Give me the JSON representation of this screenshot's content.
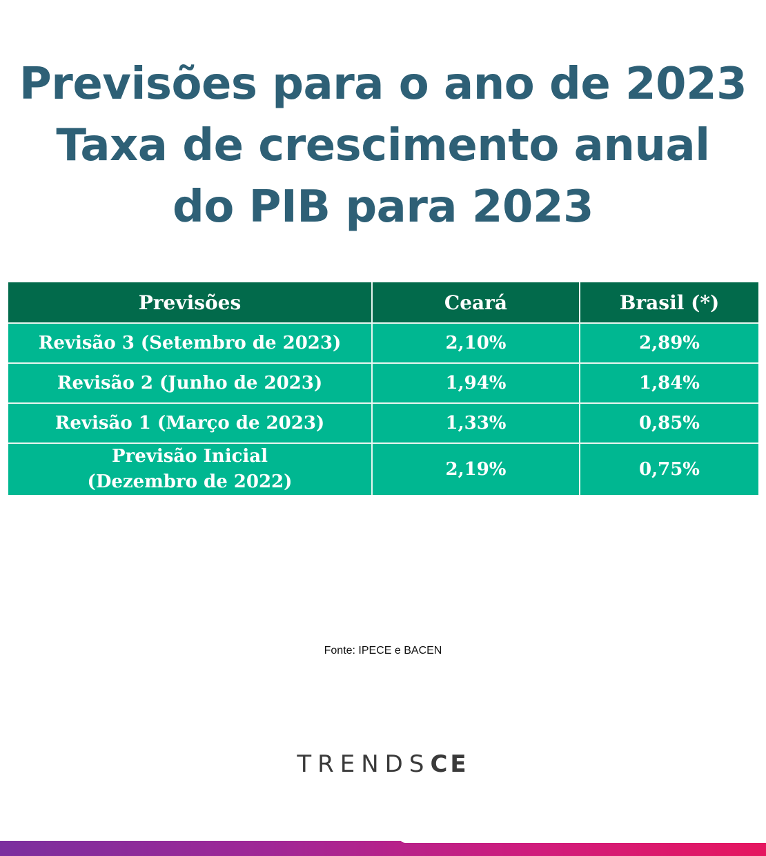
{
  "title_lines": [
    "Previsões para o ano de 2023",
    "Taxa de crescimento anual",
    "do PIB para 2023"
  ],
  "chart_data": {
    "type": "table",
    "columns": [
      "Previsões",
      "Ceará",
      "Brasil (*)"
    ],
    "rows": [
      {
        "label": [
          "Revisão 3 (Setembro de 2023)"
        ],
        "ceara": "2,10%",
        "brasil": "2,89%"
      },
      {
        "label": [
          "Revisão 2 (Junho de 2023)"
        ],
        "ceara": "1,94%",
        "brasil": "1,84%"
      },
      {
        "label": [
          "Revisão 1 (Março de 2023)"
        ],
        "ceara": "1,33%",
        "brasil": "0,85%"
      },
      {
        "label": [
          "Previsão Inicial",
          "(Dezembro de 2022)"
        ],
        "ceara": "2,19%",
        "brasil": "0,75%"
      }
    ]
  },
  "source": "Fonte: IPECE e BACEN",
  "logo": {
    "light": "TRENDS",
    "bold": "CE"
  },
  "colors": {
    "title": "#2e6076",
    "header_bg": "#026a4b",
    "cell_bg": "#00b791"
  }
}
